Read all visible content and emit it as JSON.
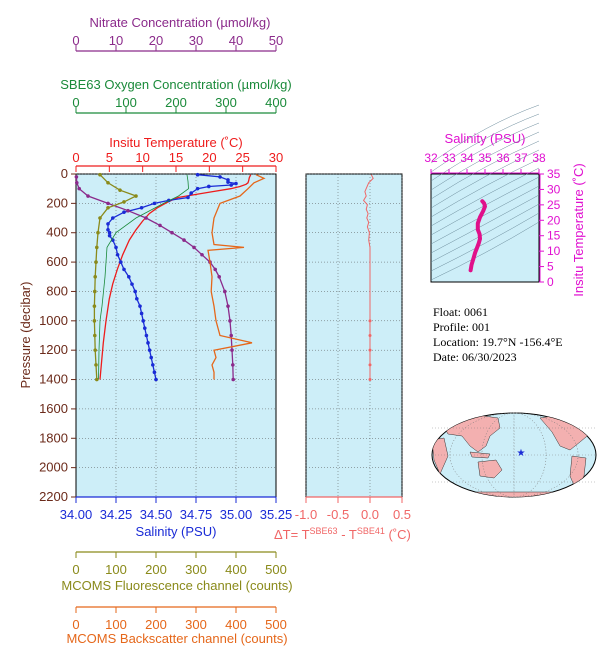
{
  "colors": {
    "nitrate": "#8b2a8b",
    "oxygen": "#1a8a3a",
    "temperature": "#ee1c1c",
    "salinity": "#1a2bd6",
    "fluorescence": "#8a8a1a",
    "backscatter": "#e5671a",
    "delta": "#f06666",
    "ts": "#e0108a",
    "panel_bg": "#cdeef8",
    "grid": "#555555",
    "land": "#f3b0b0"
  },
  "info": {
    "float": "Float:  0061",
    "profile": "Profile:  001",
    "location": "Location:  19.7°N  -156.4°E",
    "date": "Date:  06/30/2023"
  },
  "ts_marker": "star",
  "chart_data": [
    {
      "type": "line",
      "id": "profiles",
      "y_axis": {
        "label": "Pressure (decibar)",
        "ticks": [
          0,
          200,
          400,
          600,
          800,
          1000,
          1200,
          1400,
          1600,
          1800,
          2000,
          2200
        ],
        "ylim": [
          2200,
          0
        ]
      },
      "axes": {
        "nitrate": {
          "label": "Nitrate Concentration (µmol/kg)",
          "ticks": [
            0,
            10,
            20,
            30,
            40,
            50
          ],
          "range": [
            0,
            50
          ]
        },
        "oxygen": {
          "label": "SBE63 Oxygen Concentration (µmol/kg)",
          "ticks": [
            0,
            100,
            200,
            300,
            400
          ],
          "range": [
            0,
            400
          ]
        },
        "temperature": {
          "label": "Insitu Temperature (˚C)",
          "ticks": [
            0,
            5,
            10,
            15,
            20,
            25,
            30
          ],
          "range": [
            0,
            30
          ]
        },
        "salinity": {
          "label": "Salinity (PSU)",
          "ticks": [
            "34.00",
            "34.25",
            "34.50",
            "34.75",
            "35.00",
            "35.25"
          ],
          "range": [
            34.0,
            35.25
          ]
        },
        "fluorescence": {
          "label": "MCOMS Fluorescence channel (counts)",
          "ticks": [
            0,
            100,
            200,
            300,
            400,
            500
          ],
          "range": [
            0,
            500
          ]
        },
        "backscatter": {
          "label": "MCOMS Backscatter channel (counts)",
          "ticks": [
            0,
            100,
            200,
            300,
            400,
            500
          ],
          "range": [
            0,
            500
          ]
        }
      },
      "grid": true,
      "series": [
        {
          "key": "temperature",
          "p": [
            5,
            25,
            45,
            60,
            70,
            85,
            100,
            120,
            140,
            160,
            190,
            230,
            270,
            320,
            380,
            450,
            550,
            650,
            750,
            850,
            1000,
            1150,
            1300,
            1400
          ],
          "x": [
            26.2,
            26.0,
            25.9,
            25.8,
            25.5,
            24.6,
            23.2,
            20.5,
            17.8,
            15.3,
            13.8,
            12.2,
            11.0,
            10.0,
            9.0,
            8.0,
            7.0,
            6.2,
            5.5,
            5.0,
            4.5,
            4.1,
            3.8,
            3.6
          ]
        },
        {
          "key": "salinity",
          "markers": true,
          "p": [
            5,
            20,
            40,
            55,
            65,
            75,
            85,
            100,
            130,
            160,
            180,
            200,
            230,
            260,
            300,
            340,
            380,
            400,
            420,
            450,
            500,
            550,
            600,
            650,
            700,
            750,
            800,
            850,
            900,
            950,
            1000,
            1050,
            1100,
            1150,
            1200,
            1250,
            1300,
            1350,
            1400
          ],
          "x": [
            34.76,
            34.9,
            34.95,
            34.95,
            35.0,
            34.97,
            34.83,
            34.76,
            34.72,
            34.7,
            34.58,
            34.49,
            34.41,
            34.3,
            34.23,
            34.2,
            34.2,
            34.21,
            34.21,
            34.23,
            34.25,
            34.26,
            34.28,
            34.3,
            34.33,
            34.35,
            34.37,
            34.38,
            34.4,
            34.41,
            34.42,
            34.43,
            34.44,
            34.45,
            34.46,
            34.47,
            34.48,
            34.49,
            34.5
          ]
        },
        {
          "key": "nitrate",
          "markers": true,
          "p": [
            20,
            60,
            100,
            150,
            200,
            250,
            300,
            350,
            400,
            450,
            500,
            550,
            600,
            650,
            700,
            800,
            900,
            1000,
            1100,
            1200,
            1300,
            1400
          ],
          "x": [
            0.1,
            0.2,
            0.8,
            3.0,
            8.0,
            13.0,
            17.5,
            21.0,
            24.0,
            27.0,
            29.5,
            31.5,
            33.5,
            34.8,
            35.8,
            37.2,
            38.0,
            38.5,
            38.8,
            39.0,
            39.2,
            39.3
          ]
        },
        {
          "key": "oxygen",
          "p": [
            5,
            50,
            100,
            150,
            200,
            300,
            400,
            500,
            600,
            700,
            800,
            900,
            1000,
            1200,
            1400
          ],
          "x": [
            222,
            224,
            225,
            205,
            175,
            120,
            80,
            62,
            60,
            58,
            55,
            52,
            48,
            46,
            45
          ]
        },
        {
          "key": "fluorescence",
          "markers": true,
          "p": [
            5,
            60,
            110,
            150,
            190,
            230,
            300,
            400,
            500,
            600,
            700,
            800,
            900,
            1000,
            1100,
            1200,
            1300,
            1400
          ],
          "x": [
            60,
            80,
            110,
            150,
            120,
            80,
            60,
            55,
            52,
            50,
            48,
            47,
            46,
            46,
            47,
            48,
            50,
            52
          ]
        },
        {
          "key": "backscatter",
          "p": [
            5,
            30,
            60,
            100,
            150,
            200,
            300,
            400,
            480,
            500,
            520,
            600,
            700,
            800,
            900,
            1000,
            1100,
            1150,
            1200,
            1250,
            1300,
            1350,
            1400
          ],
          "x": [
            450,
            470,
            445,
            430,
            410,
            360,
            345,
            340,
            345,
            420,
            330,
            335,
            340,
            338,
            345,
            350,
            360,
            440,
            345,
            350,
            340,
            345,
            345
          ]
        }
      ]
    },
    {
      "type": "line",
      "id": "delta_t",
      "xlabel": "ΔT= T^SBE63 - T^SBE41 (˚C)",
      "ticks": [
        "-1.0",
        "-0.5",
        "0.0",
        "0.5"
      ],
      "xlim": [
        -1.0,
        0.5
      ],
      "ylim": [
        2200,
        0
      ],
      "grid": true,
      "series": [
        {
          "key": "delta",
          "p": [
            5,
            30,
            60,
            90,
            120,
            150,
            180,
            210,
            240,
            270,
            300,
            330,
            360,
            400,
            450,
            500,
            600,
            700,
            800,
            900,
            1000,
            1100,
            1200,
            1300,
            1400
          ],
          "x": [
            0.02,
            0.05,
            -0.02,
            -0.05,
            -0.08,
            -0.06,
            -0.1,
            -0.04,
            -0.06,
            -0.03,
            -0.05,
            -0.02,
            -0.04,
            -0.01,
            -0.02,
            0.0,
            0.0,
            0.0,
            0.0,
            0.0,
            0.0,
            0.0,
            0.0,
            0.0,
            0.0
          ]
        }
      ]
    },
    {
      "type": "line",
      "id": "ts_diagram",
      "xlabel": "Salinity (PSU)",
      "ylabel": "Insitu Temperature (˚C)",
      "xticks": [
        32,
        33,
        34,
        35,
        36,
        37,
        38
      ],
      "yticks": [
        0,
        5,
        10,
        15,
        20,
        25,
        30,
        35
      ],
      "xlim": [
        32,
        38
      ],
      "ylim": [
        0,
        35
      ],
      "series": [
        {
          "key": "ts",
          "s": [
            34.2,
            34.22,
            34.25,
            34.3,
            34.38,
            34.45,
            34.55,
            34.65,
            34.72,
            34.7,
            34.6,
            34.6,
            34.72,
            34.9,
            35.0,
            34.95,
            34.85
          ],
          "t": [
            3.8,
            4.5,
            5.5,
            6.5,
            8.0,
            9.5,
            11.0,
            12.5,
            14.0,
            15.5,
            17.0,
            19.0,
            21.0,
            23.0,
            24.5,
            25.5,
            26.2
          ]
        }
      ]
    }
  ]
}
